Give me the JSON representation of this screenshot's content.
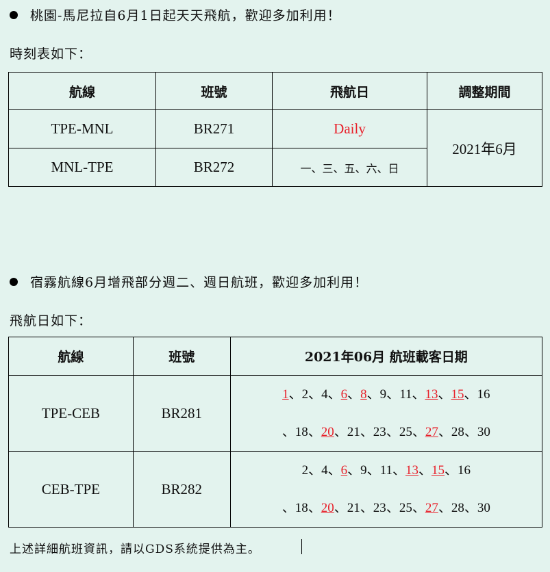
{
  "section1": {
    "announcement": "桃園-馬尼拉自6月1日起天天飛航，歡迎多加利用！",
    "intro": "時刻表如下：",
    "headers": [
      "航線",
      "班號",
      "飛航日",
      "調整期間"
    ],
    "rows": [
      {
        "route": "TPE-MNL",
        "flight": "BR271",
        "days": "Daily"
      },
      {
        "route": "MNL-TPE",
        "flight": "BR272",
        "days": "一、三、五、六、日"
      }
    ],
    "period": "2021年6月"
  },
  "section2": {
    "announcement": "宿霧航線6月增飛部分週二、週日航班，歡迎多加利用！",
    "intro": "飛航日如下：",
    "headers": [
      "航線",
      "班號",
      "2021年06月 航班載客日期"
    ],
    "rows": [
      {
        "route": "TPE-CEB",
        "flight": "BR281",
        "lines": [
          [
            {
              "t": "1",
              "hl": true
            },
            {
              "t": "、2"
            },
            {
              "t": "、4"
            },
            {
              "t": "、"
            },
            {
              "t": "6",
              "hl": true
            },
            {
              "t": "、"
            },
            {
              "t": "8",
              "hl": true
            },
            {
              "t": "、9"
            },
            {
              "t": "、11"
            },
            {
              "t": "、"
            },
            {
              "t": "13",
              "hl": true
            },
            {
              "t": "、"
            },
            {
              "t": "15",
              "hl": true
            },
            {
              "t": "、16"
            }
          ],
          [
            {
              "t": "、18"
            },
            {
              "t": "、"
            },
            {
              "t": "20",
              "hl": true
            },
            {
              "t": "、21"
            },
            {
              "t": "、23"
            },
            {
              "t": "、25"
            },
            {
              "t": "、"
            },
            {
              "t": "27",
              "hl": true
            },
            {
              "t": "、28"
            },
            {
              "t": "、30"
            }
          ]
        ]
      },
      {
        "route": "CEB-TPE",
        "flight": "BR282",
        "lines": [
          [
            {
              "t": "2"
            },
            {
              "t": "、4"
            },
            {
              "t": "、"
            },
            {
              "t": "6",
              "hl": true
            },
            {
              "t": "、9"
            },
            {
              "t": "、11"
            },
            {
              "t": "、"
            },
            {
              "t": "13",
              "hl": true
            },
            {
              "t": "、"
            },
            {
              "t": "15",
              "hl": true
            },
            {
              "t": "、16"
            }
          ],
          [
            {
              "t": "、18"
            },
            {
              "t": "、"
            },
            {
              "t": "20",
              "hl": true
            },
            {
              "t": "、21"
            },
            {
              "t": "、23"
            },
            {
              "t": "、25"
            },
            {
              "t": "、"
            },
            {
              "t": "27",
              "hl": true
            },
            {
              "t": "、28"
            },
            {
              "t": "、30"
            }
          ]
        ]
      }
    ]
  },
  "footer": "上述詳細航班資訊，請以GDS系統提供為主。",
  "colors": {
    "background": "#e3f3ee",
    "highlight": "#e8202a"
  }
}
